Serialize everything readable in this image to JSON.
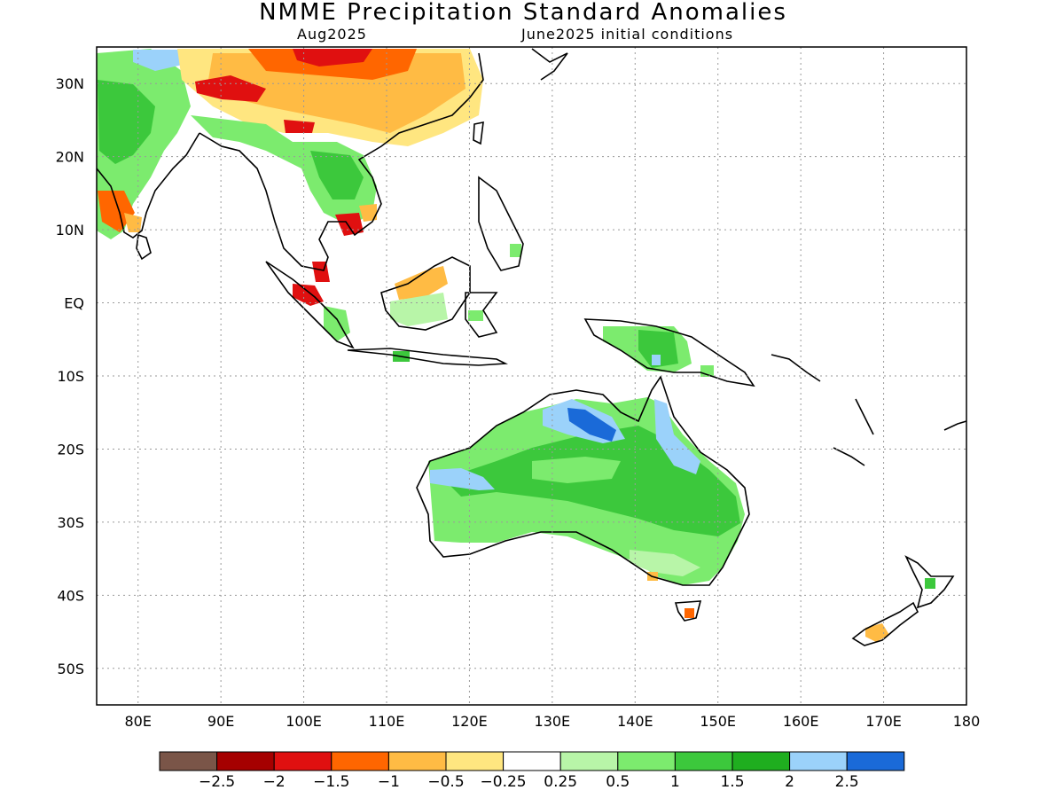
{
  "title": "NMME Precipitation Standard Anomalies",
  "subtitle_left": "Aug2025",
  "subtitle_right": "June2025 initial conditions",
  "lat_labels": [
    "30N",
    "20N",
    "10N",
    "EQ",
    "10S",
    "20S",
    "30S",
    "40S",
    "50S"
  ],
  "lon_labels": [
    "80E",
    "90E",
    "100E",
    "110E",
    "120E",
    "130E",
    "140E",
    "150E",
    "160E",
    "170E",
    "180"
  ],
  "legend": {
    "colors": [
      "#7a5548",
      "#a50000",
      "#e01010",
      "#ff6600",
      "#ffbb44",
      "#ffe680",
      "#ffffff",
      "#b8f5a8",
      "#7ceb6e",
      "#3cc83c",
      "#1fae1f",
      "#9bd2fa",
      "#1a6ad8"
    ],
    "labels": [
      "-2.5",
      "-2",
      "-1.5",
      "-1",
      "-0.5",
      "-0.25",
      "0.25",
      "0.5",
      "1",
      "1.5",
      "2",
      "2.5"
    ]
  }
}
